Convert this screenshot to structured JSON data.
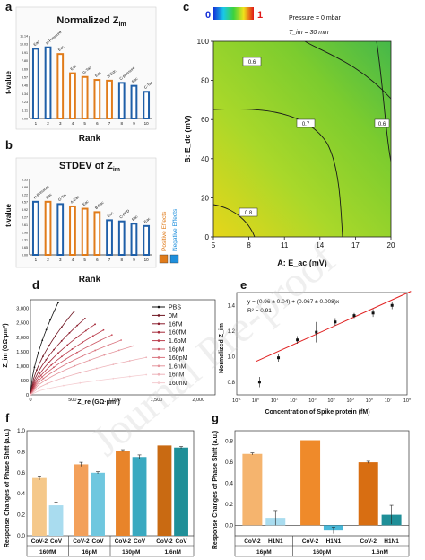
{
  "panel_labels": [
    "a",
    "b",
    "c",
    "d",
    "e",
    "f",
    "g"
  ],
  "watermark": "Journal Pre-proof",
  "chart_data": [
    {
      "panel": "a",
      "type": "bar",
      "title": "Normalized Z",
      "title_sub": "im",
      "xlabel": "Rank",
      "ylabel": "t-value",
      "categories": [
        "1",
        "2",
        "3",
        "4",
        "5",
        "6",
        "7",
        "8",
        "9",
        "10"
      ],
      "values": [
        9.4,
        9.6,
        8.7,
        6.1,
        5.6,
        5.2,
        5.1,
        4.8,
        4.4,
        3.6
      ],
      "bar_labels": [
        "Eac",
        "H-Pressure",
        "Eac",
        "Eac",
        "G-Tac",
        "Eac",
        "B-Edc",
        "C-pressure",
        "Eac",
        "C-Tac"
      ],
      "bar_colors": [
        "#1f5fa8",
        "#1f5fa8",
        "#e07b1a",
        "#e07b1a",
        "#e07b1a",
        "#e07b1a",
        "#e07b1a",
        "#1f5fa8",
        "#1f5fa8",
        "#1f5fa8"
      ],
      "yticks": [
        "0.00",
        "1.11",
        "2.23",
        "3.34",
        "4.46",
        "5.57",
        "6.69",
        "7.80",
        "8.91",
        "10.03",
        "11.14"
      ],
      "ylim": [
        0,
        11.14
      ]
    },
    {
      "panel": "b",
      "type": "bar",
      "title": "STDEV of Z",
      "title_sub": "im",
      "xlabel": "Rank",
      "ylabel": "t-value",
      "categories": [
        "1",
        "2",
        "3",
        "4",
        "5",
        "6",
        "7",
        "8",
        "9",
        "10"
      ],
      "values": [
        4.6,
        4.6,
        4.4,
        4.2,
        4.0,
        3.7,
        3.0,
        2.9,
        2.7,
        2.5
      ],
      "bar_labels": [
        "H-Pressure",
        "Eac",
        "G-Tin",
        "A-Eac",
        "Eac",
        "B-Eac",
        "Eac",
        "C-PPD",
        "Eac",
        "Eac"
      ],
      "bar_colors": [
        "#1f5fa8",
        "#e07b1a",
        "#1f5fa8",
        "#e07b1a",
        "#e07b1a",
        "#e07b1a",
        "#1f5fa8",
        "#1f5fa8",
        "#1f5fa8",
        "#1f5fa8"
      ],
      "yticks": [
        "0.00",
        "0.65",
        "1.31",
        "1.96",
        "2.61",
        "3.27",
        "3.92",
        "4.57",
        "5.22",
        "5.88",
        "6.53"
      ],
      "ylim": [
        0,
        6.53
      ],
      "legend": [
        "Positive Effects",
        "Negative Effects"
      ],
      "legend_colors": [
        "#e07b1a",
        "#1f8fdc"
      ]
    },
    {
      "panel": "c",
      "type": "heatmap",
      "colorbar": [
        "0",
        "1"
      ],
      "annotation_1": "Pressure = 0 mbar",
      "annotation_2": "T_im = 30 min",
      "xlabel": "A: E_ac (mV)",
      "ylabel": "B: E_dc (mV)",
      "xticks": [
        "5",
        "8",
        "11",
        "14",
        "17",
        "20"
      ],
      "yticks": [
        "0",
        "20",
        "40",
        "60",
        "80",
        "100"
      ],
      "xlim": [
        5,
        20
      ],
      "ylim": [
        0,
        100
      ],
      "contour_labels": [
        "0.6",
        "0.7",
        "0.6",
        "0.8"
      ]
    },
    {
      "panel": "d",
      "type": "line",
      "xlabel": "Z_re (GΩ·μm²)",
      "ylabel": "Z_im (GΩ·μm²)",
      "xticks": [
        "0",
        "500",
        "1,000",
        "1,500",
        "2,000"
      ],
      "yticks": [
        "0",
        "500",
        "1,000",
        "1,500",
        "2,000",
        "2,500",
        "3,000"
      ],
      "xlim": [
        0,
        2200
      ],
      "ylim": [
        0,
        3300
      ],
      "series": [
        {
          "name": "PBS",
          "end": [
            330,
            3200
          ],
          "color": "#111111"
        },
        {
          "name": "0M",
          "end": [
            520,
            2900
          ],
          "color": "#6e1420"
        },
        {
          "name": "16fM",
          "end": [
            650,
            2650
          ],
          "color": "#8a1c2c"
        },
        {
          "name": "160fM",
          "end": [
            770,
            2450
          ],
          "color": "#a52a3a"
        },
        {
          "name": "1.6pM",
          "end": [
            870,
            2250
          ],
          "color": "#bb3c4c"
        },
        {
          "name": "16pM",
          "end": [
            970,
            2080
          ],
          "color": "#cc5663"
        },
        {
          "name": "160pM",
          "end": [
            1080,
            1900
          ],
          "color": "#d9727d"
        },
        {
          "name": "1.6nM",
          "end": [
            1230,
            1700
          ],
          "color": "#e4939b"
        },
        {
          "name": "16nM",
          "end": [
            1380,
            1300
          ],
          "color": "#edb2b8"
        },
        {
          "name": "160nM",
          "end": [
            1380,
            700
          ],
          "color": "#f4cdd1"
        }
      ]
    },
    {
      "panel": "e",
      "type": "scatter",
      "equation": "y = (0.96 ± 0.04) + (0.067 ± 0.008)x",
      "r2": "R² = 0.91",
      "xlabel": "Concentration of Spike protein (fM)",
      "ylabel": "Normalized Z_im",
      "x": [
        1.6,
        16,
        160,
        1600,
        16000,
        160000,
        1600000,
        16000000
      ],
      "y": [
        0.8,
        0.99,
        1.13,
        1.19,
        1.27,
        1.32,
        1.34,
        1.4
      ],
      "err": [
        0.04,
        0.03,
        0.03,
        0.08,
        0.03,
        0.02,
        0.03,
        0.03
      ],
      "fit": {
        "intercept": 0.96,
        "slope": 0.067
      },
      "xtick_exponents": [
        "-1",
        "0",
        "1",
        "2",
        "3",
        "4",
        "5",
        "6",
        "7",
        "8"
      ],
      "yticks": [
        "0.8",
        "1.0",
        "1.2",
        "1.4"
      ],
      "ylim": [
        0.7,
        1.5
      ]
    },
    {
      "panel": "f",
      "type": "bar",
      "ylabel": "Response Changes of Phase Shift (a.u.)",
      "groups": [
        "160fM",
        "16pM",
        "160pM",
        "1.6nM"
      ],
      "sub_labels": [
        "CoV-2",
        "CoV"
      ],
      "values": [
        [
          0.55,
          0.29
        ],
        [
          0.68,
          0.6
        ],
        [
          0.81,
          0.75
        ],
        [
          0.86,
          0.84
        ]
      ],
      "err": [
        [
          0.02,
          0.03
        ],
        [
          0.02,
          0.01
        ],
        [
          0.01,
          0.02
        ],
        [
          0.0,
          0.01
        ]
      ],
      "colors": [
        [
          "#f5c88a",
          "#a9dcef"
        ],
        [
          "#f3a05a",
          "#6fc7df"
        ],
        [
          "#e8842a",
          "#3aa9c0"
        ],
        [
          "#c96a12",
          "#1f8f98"
        ]
      ],
      "yticks": [
        "0.0",
        "0.2",
        "0.4",
        "0.6",
        "0.8",
        "1.0"
      ],
      "ylim": [
        0,
        1.0
      ]
    },
    {
      "panel": "g",
      "type": "bar",
      "ylabel": "Response Changes of Phase Shift (a.u.)",
      "groups": [
        "16pM",
        "160pM",
        "1.6nM"
      ],
      "sub_labels": [
        "CoV-2",
        "H1N1"
      ],
      "values": [
        [
          0.68,
          0.07
        ],
        [
          0.81,
          -0.05
        ],
        [
          0.6,
          0.1
        ]
      ],
      "err": [
        [
          0.01,
          0.07
        ],
        [
          0.0,
          0.03
        ],
        [
          0.01,
          0.09
        ]
      ],
      "colors": [
        [
          "#f5b46e",
          "#a9dcef"
        ],
        [
          "#ef8a2a",
          "#49b8d8"
        ],
        [
          "#d86e12",
          "#1f8f98"
        ]
      ],
      "yticks": [
        "0.0",
        "0.2",
        "0.4",
        "0.6",
        "0.8"
      ],
      "ylim": [
        -0.1,
        0.9
      ]
    }
  ]
}
